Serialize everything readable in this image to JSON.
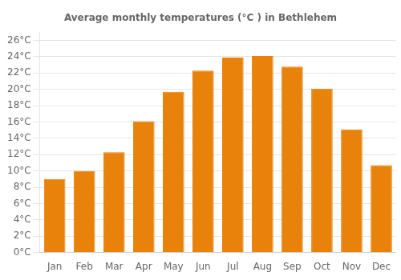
{
  "chart_data": {
    "type": "bar",
    "title": "Average monthly temperatures (°C ) in Bethlehem",
    "categories": [
      "Jan",
      "Feb",
      "Mar",
      "Apr",
      "May",
      "Jun",
      "Jul",
      "Aug",
      "Sep",
      "Oct",
      "Nov",
      "Dec"
    ],
    "values": [
      9.0,
      10.0,
      12.3,
      16.1,
      19.7,
      22.3,
      23.9,
      24.1,
      22.8,
      20.1,
      15.1,
      10.7
    ],
    "color": "#E8820A",
    "ylim": [
      0,
      27
    ],
    "yticks": [
      {
        "value": 0,
        "label": "0°C"
      },
      {
        "value": 2,
        "label": "2°C"
      },
      {
        "value": 4,
        "label": "4°C"
      },
      {
        "value": 6,
        "label": "6°C"
      },
      {
        "value": 8,
        "label": "8°C"
      },
      {
        "value": 10,
        "label": "10°C"
      },
      {
        "value": 12,
        "label": "12°C"
      },
      {
        "value": 14,
        "label": "14°C"
      },
      {
        "value": 16,
        "label": "16°C"
      },
      {
        "value": 18,
        "label": "18°C"
      },
      {
        "value": 20,
        "label": "20°C"
      },
      {
        "value": 22,
        "label": "22°C"
      },
      {
        "value": 24,
        "label": "24°C"
      },
      {
        "value": 26,
        "label": "26°C"
      }
    ],
    "grid": true
  }
}
